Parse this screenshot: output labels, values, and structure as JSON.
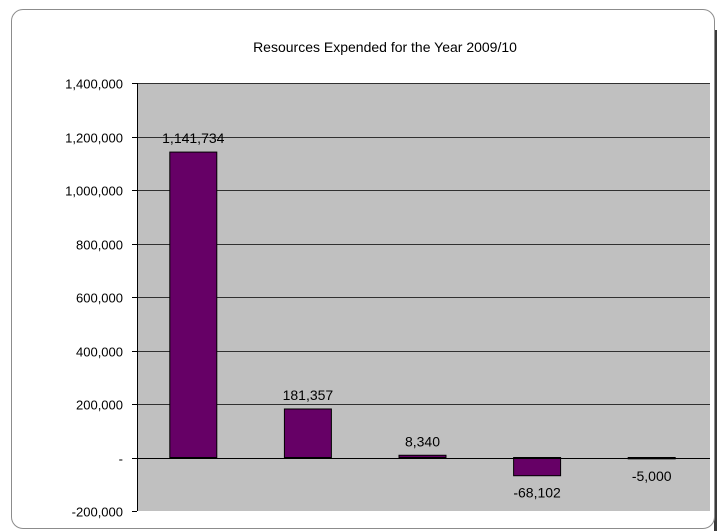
{
  "chart_data": {
    "type": "bar",
    "title": "Resources Expended for the Year 2009/10",
    "xlabel": "",
    "ylabel": "",
    "categories": [
      "",
      "",
      "",
      "",
      ""
    ],
    "values": [
      1141734,
      181357,
      8340,
      -68102,
      -5000
    ],
    "data_labels": [
      "1,141,734",
      "181,357",
      "8,340",
      "-68,102",
      "-5,000"
    ],
    "ylim": [
      -200000,
      1400000
    ],
    "yticks": [
      -200000,
      0,
      200000,
      400000,
      600000,
      800000,
      1000000,
      1200000,
      1400000
    ],
    "ytick_labels": [
      "-200,000",
      "-",
      "200,000",
      "400,000",
      "600,000",
      "800,000",
      "1,000,000",
      "1,200,000",
      "1,400,000"
    ],
    "grid": true,
    "legend": "none",
    "colors": {
      "bar": "#660066",
      "plot_background": "#c0c0c0",
      "gridline": "#000000"
    }
  }
}
